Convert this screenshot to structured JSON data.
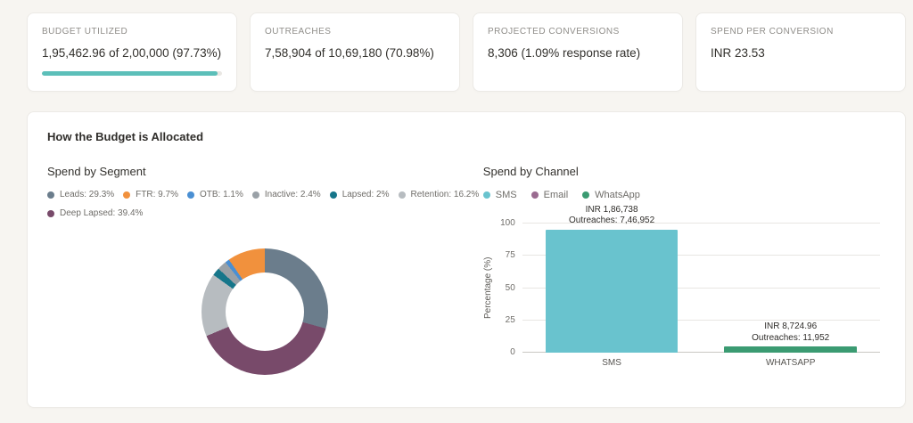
{
  "kpis": [
    {
      "label": "BUDGET UTILIZED",
      "value": "1,95,462.96 of 2,00,000 (97.73%)",
      "progress_pct": 97.73
    },
    {
      "label": "OUTREACHES",
      "value": "7,58,904 of 10,69,180 (70.98%)"
    },
    {
      "label": "PROJECTED CONVERSIONS",
      "value": "8,306 (1.09% response rate)"
    },
    {
      "label": "SPEND PER CONVERSION",
      "value": "INR 23.53"
    }
  ],
  "colors": {
    "progress": "#5cbfb9"
  },
  "allocation": {
    "title": "How the Budget is Allocated",
    "segment_title": "Spend by Segment",
    "channel_title": "Spend by Channel",
    "segment_legend": [
      {
        "label": "Leads: 29.3%",
        "color": "#6b7d8c"
      },
      {
        "label": "FTR: 9.7%",
        "color": "#f1913d"
      },
      {
        "label": "OTB: 1.1%",
        "color": "#4a8fd3"
      },
      {
        "label": "Inactive: 2.4%",
        "color": "#9aa1a7"
      },
      {
        "label": "Lapsed: 2%",
        "color": "#16768a"
      },
      {
        "label": "Retention: 16.2%",
        "color": "#b7bcc0"
      },
      {
        "label": "Deep Lapsed: 39.4%",
        "color": "#784a6a"
      }
    ],
    "channel_legend": [
      {
        "label": "SMS",
        "color": "#69c3ce"
      },
      {
        "label": "Email",
        "color": "#9a6b90"
      },
      {
        "label": "WhatsApp",
        "color": "#3b9b72"
      }
    ]
  },
  "chart_data": [
    {
      "type": "pie",
      "title": "Spend by Segment",
      "labels": [
        "Leads",
        "FTR",
        "OTB",
        "Inactive",
        "Lapsed",
        "Retention",
        "Deep Lapsed"
      ],
      "values": [
        29.3,
        9.7,
        1.1,
        2.4,
        2,
        16.2,
        39.4
      ],
      "colors": [
        "#6b7d8c",
        "#f1913d",
        "#4a8fd3",
        "#9aa1a7",
        "#16768a",
        "#b7bcc0",
        "#784a6a"
      ],
      "hole": 0.62,
      "clockwise_order": [
        0,
        6,
        5,
        4,
        3,
        2,
        1
      ],
      "legend_position": "top"
    },
    {
      "type": "bar",
      "title": "Spend by Channel",
      "categories": [
        "SMS",
        "WHATSAPP"
      ],
      "values": [
        95.5,
        4.5
      ],
      "colors": [
        "#69c3ce",
        "#3b9b72"
      ],
      "ylabel": "Percentage (%)",
      "ylim": [
        0,
        100
      ],
      "yticks": [
        0,
        25,
        50,
        75,
        100
      ],
      "grid": true,
      "annotations": [
        {
          "line1": "INR 1,86,738",
          "line2": "Outreaches: 7,46,952"
        },
        {
          "line1": "INR 8,724.96",
          "line2": "Outreaches: 11,952"
        }
      ]
    }
  ]
}
